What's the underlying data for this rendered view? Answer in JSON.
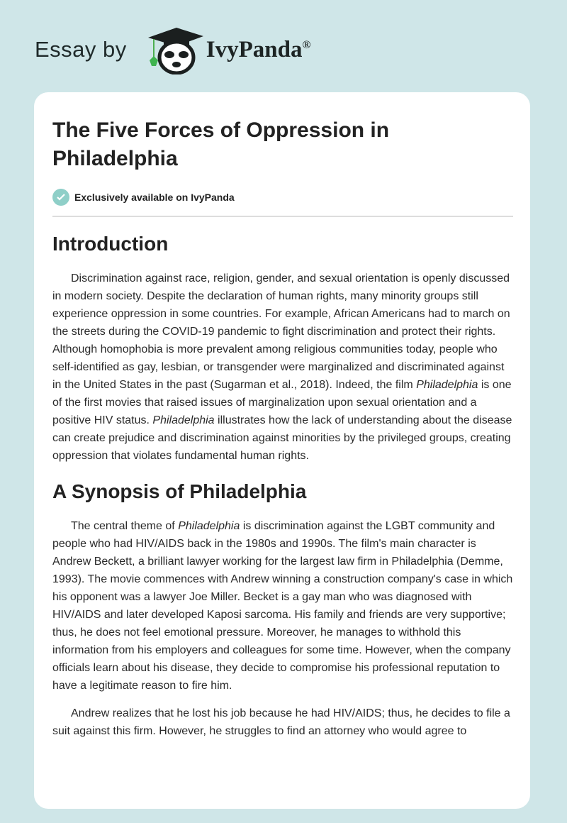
{
  "header": {
    "essay_by": "Essay by",
    "brand": "IvyPanda",
    "registered": "®",
    "logo_icon": "panda-graduate-logo"
  },
  "article": {
    "title": "The Five Forces of Oppression in Philadelphia",
    "badge": "Exclusively available on IvyPanda",
    "sections": [
      {
        "heading": "Introduction",
        "p1a": "Discrimination against race, religion, gender, and sexual orientation is openly discussed in modern society. Despite the declaration of human rights, many minority groups still experience oppression in some countries. For example, African Americans had to march on the streets during the COVID-19 pandemic to fight discrimination and protect their rights. Although homophobia is more prevalent among religious communities today, people who self-identified as gay, lesbian, or transgender were marginalized and discriminated against in the United States in the past (Sugarman et al., 2018). Indeed, the film ",
        "p1i": "Philadelphia",
        "p1b": " is one of the first movies that raised issues of marginalization upon sexual orientation and a positive HIV status. ",
        "p1i2": "Philadelphia",
        "p1c": " illustrates how the lack of understanding about the disease can create prejudice and discrimination against minorities by the privileged groups, creating oppression that violates fundamental human rights."
      },
      {
        "heading": "A Synopsis of Philadelphia",
        "p1a": "The central theme of ",
        "p1i": "Philadelphia",
        "p1b": " is discrimination against the LGBT community and people who had HIV/AIDS back in the 1980s and 1990s. The film's main character is Andrew Beckett, a brilliant lawyer working for the largest law firm in Philadelphia (Demme, 1993). The movie commences with Andrew winning a construction company's case in which his opponent was a lawyer Joe Miller. Becket is a gay man who was diagnosed with HIV/AIDS and later developed Kaposi sarcoma. His family and friends are very supportive; thus, he does not feel emotional pressure. Moreover, he manages to withhold this information from his employers and colleagues for some time. However, when the company officials learn about his disease, they decide to compromise his professional reputation to have a legitimate reason to fire him.",
        "p2": "Andrew realizes that he lost his job because he had HIV/AIDS; thus, he decides to file a suit against this firm. However, he struggles to find an attorney who would agree to"
      }
    ]
  }
}
